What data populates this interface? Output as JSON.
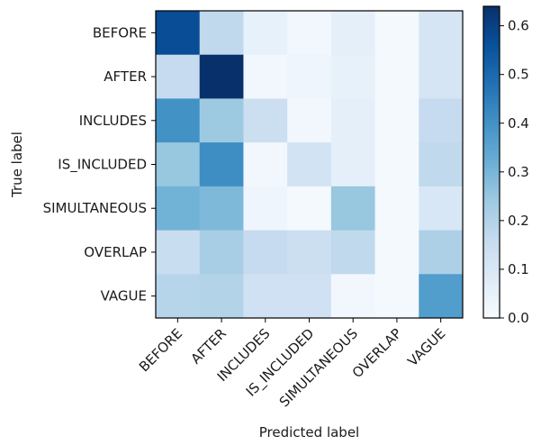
{
  "chart_data": {
    "type": "heatmap",
    "title": "",
    "xlabel": "Predicted label",
    "ylabel": "True label",
    "x_categories": [
      "BEFORE",
      "AFTER",
      "INCLUDES",
      "IS_INCLUDED",
      "SIMULTANEOUS",
      "OVERLAP",
      "VAGUE"
    ],
    "y_categories": [
      "BEFORE",
      "AFTER",
      "INCLUDES",
      "IS_INCLUDED",
      "SIMULTANEOUS",
      "OVERLAP",
      "VAGUE"
    ],
    "values": [
      [
        0.57,
        0.17,
        0.05,
        0.02,
        0.06,
        0.01,
        0.11
      ],
      [
        0.16,
        0.64,
        0.02,
        0.03,
        0.05,
        0.01,
        0.11
      ],
      [
        0.4,
        0.24,
        0.14,
        0.02,
        0.06,
        0.01,
        0.16
      ],
      [
        0.25,
        0.41,
        0.02,
        0.12,
        0.06,
        0.01,
        0.17
      ],
      [
        0.31,
        0.29,
        0.03,
        0.01,
        0.25,
        0.01,
        0.1
      ],
      [
        0.15,
        0.22,
        0.16,
        0.14,
        0.17,
        0.01,
        0.21
      ],
      [
        0.19,
        0.2,
        0.13,
        0.13,
        0.02,
        0.01,
        0.37
      ]
    ],
    "colormap": "Blues",
    "colorbar": {
      "range": [
        0.0,
        0.64
      ],
      "ticks": [
        0.0,
        0.1,
        0.2,
        0.3,
        0.4,
        0.5,
        0.6
      ],
      "tick_labels": [
        "0.0",
        "0.1",
        "0.2",
        "0.3",
        "0.4",
        "0.5",
        "0.6"
      ]
    },
    "grid": false
  }
}
